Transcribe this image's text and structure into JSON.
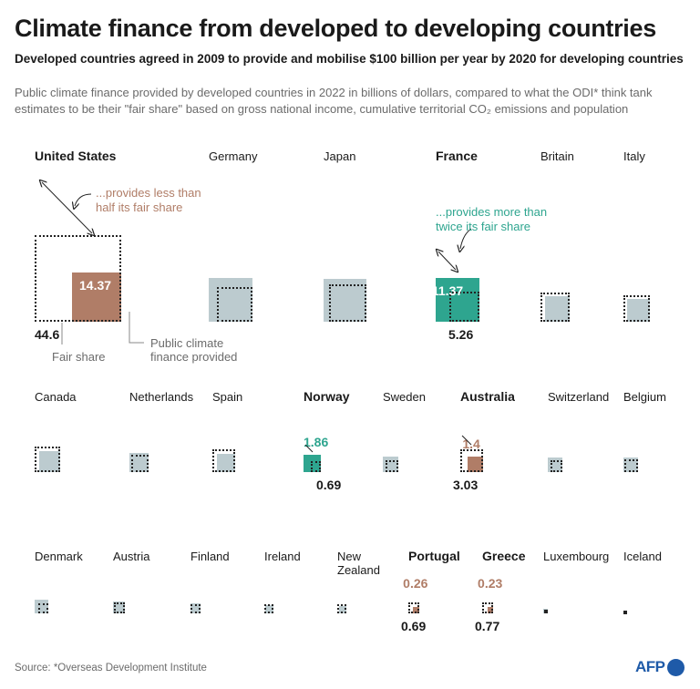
{
  "title": "Climate finance from developed to developing countries",
  "subtitle": "Developed countries agreed in 2009 to provide and mobilise $100 billion per year by 2020 for developing countries",
  "description": "Public climate finance provided by developed countries in 2022 in billions of dollars, compared to what the ODI* think tank estimates to be their \"fair share\" based on gross national income, cumulative territorial CO₂ emissions and population",
  "annotations": {
    "less": "...provides less than half its fair share",
    "more": "...provides more than twice its fair share"
  },
  "legend": {
    "fair_share": "Fair share",
    "provided": "Public climate finance provided"
  },
  "source": "Source: *Overseas Development Institute",
  "logo": "AFP",
  "colors": {
    "neutral": "#bccbcf",
    "more": "#2ea58f",
    "less": "#b07d67",
    "fair_outline": "#222222"
  },
  "chart_data": {
    "type": "proportional-squares",
    "unit": "billions of dollars",
    "year": 2022,
    "countries": [
      {
        "name": "United States",
        "provided": 14.37,
        "fair_share": 44.6,
        "provided_label": "14.37",
        "fair_label": "44.6",
        "category": "less"
      },
      {
        "name": "Germany",
        "provided": 11.2,
        "fair_share": 7.3,
        "category": "neutral"
      },
      {
        "name": "Japan",
        "provided": 11.0,
        "fair_share": 8.4,
        "category": "neutral"
      },
      {
        "name": "France",
        "provided": 11.37,
        "fair_share": 5.26,
        "provided_label": "11.37",
        "fair_label": "5.26",
        "category": "more"
      },
      {
        "name": "Britain",
        "provided": 3.8,
        "fair_share": 5.2,
        "category": "neutral"
      },
      {
        "name": "Italy",
        "provided": 3.1,
        "fair_share": 4.1,
        "category": "neutral"
      },
      {
        "name": "Canada",
        "provided": 2.7,
        "fair_share": 4.0,
        "category": "neutral"
      },
      {
        "name": "Netherlands",
        "provided": 2.1,
        "fair_share": 1.7,
        "category": "neutral"
      },
      {
        "name": "Spain",
        "provided": 1.9,
        "fair_share": 3.0,
        "category": "neutral"
      },
      {
        "name": "Norway",
        "provided": 1.86,
        "fair_share": 0.69,
        "provided_label": "1.86",
        "fair_label": "0.69",
        "category": "more"
      },
      {
        "name": "Sweden",
        "provided": 1.4,
        "fair_share": 0.9,
        "category": "neutral"
      },
      {
        "name": "Australia",
        "provided": 1.4,
        "fair_share": 3.03,
        "provided_label": "1.4",
        "fair_label": "3.03",
        "category": "less"
      },
      {
        "name": "Switzerland",
        "provided": 1.3,
        "fair_share": 0.9,
        "category": "neutral"
      },
      {
        "name": "Belgium",
        "provided": 1.2,
        "fair_share": 1.0,
        "category": "neutral"
      },
      {
        "name": "Denmark",
        "provided": 1.05,
        "fair_share": 0.55,
        "category": "neutral"
      },
      {
        "name": "Austria",
        "provided": 0.85,
        "fair_share": 0.7,
        "category": "neutral"
      },
      {
        "name": "Finland",
        "provided": 0.55,
        "fair_share": 0.5,
        "category": "neutral"
      },
      {
        "name": "Ireland",
        "provided": 0.4,
        "fair_share": 0.45,
        "category": "neutral"
      },
      {
        "name": "New Zealand",
        "provided": 0.35,
        "fair_share": 0.5,
        "category": "neutral"
      },
      {
        "name": "Portugal",
        "provided": 0.26,
        "fair_share": 0.69,
        "provided_label": "0.26",
        "fair_label": "0.69",
        "category": "less"
      },
      {
        "name": "Greece",
        "provided": 0.23,
        "fair_share": 0.77,
        "provided_label": "0.23",
        "fair_label": "0.77",
        "category": "less"
      },
      {
        "name": "Luxembourg",
        "provided": 0.12,
        "fair_share": 0.08,
        "category": "neutral"
      },
      {
        "name": "Iceland",
        "provided": 0.05,
        "fair_share": 0.04,
        "category": "neutral"
      }
    ]
  }
}
